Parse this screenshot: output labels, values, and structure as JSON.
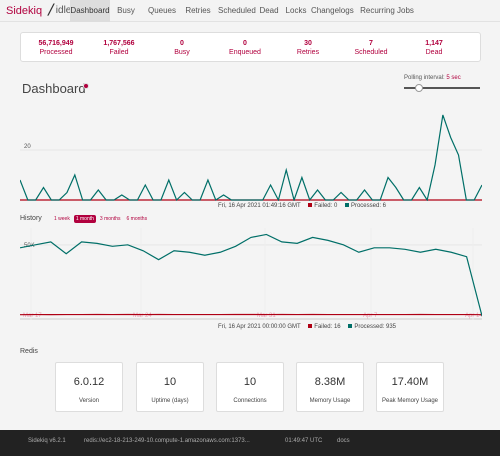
{
  "brand": "Sidekiq",
  "status": "idle",
  "nav": [
    "Dashboard",
    "Busy",
    "Queues",
    "Retries",
    "Scheduled",
    "Dead",
    "Locks",
    "Changelogs",
    "Recurring Jobs"
  ],
  "summary": [
    {
      "value": "56,716,949",
      "label": "Processed"
    },
    {
      "value": "1,767,566",
      "label": "Failed"
    },
    {
      "value": "0",
      "label": "Busy"
    },
    {
      "value": "0",
      "label": "Enqueued"
    },
    {
      "value": "30",
      "label": "Retries"
    },
    {
      "value": "7",
      "label": "Scheduled"
    },
    {
      "value": "1,147",
      "label": "Dead"
    }
  ],
  "dashboard_title": "Dashboard",
  "polling": {
    "label": "Polling interval:",
    "value": "5 sec"
  },
  "realtime_legend": {
    "time": "Fri, 16 Apr 2021 01:49:16 GMT",
    "failed": "Failed: 0",
    "processed": "Processed: 6"
  },
  "history": {
    "label": "History",
    "tabs": [
      "1 week",
      "1 month",
      "3 months",
      "6 months"
    ],
    "legend": {
      "time": "Fri, 16 Apr 2021 00:00:00 GMT",
      "failed": "Failed: 16",
      "processed": "Processed: 935"
    }
  },
  "redis": {
    "title": "Redis",
    "boxes": [
      {
        "value": "6.0.12",
        "label": "Version"
      },
      {
        "value": "10",
        "label": "Uptime (days)"
      },
      {
        "value": "10",
        "label": "Connections"
      },
      {
        "value": "8.38M",
        "label": "Memory Usage"
      },
      {
        "value": "17.40M",
        "label": "Peak Memory Usage"
      }
    ]
  },
  "footer": {
    "version": "Sidekiq v6.2.1",
    "redis_url": "redis://ec2-18-213-249-10.compute-1.amazonaws.com:1373...",
    "time": "01:49:47 UTC",
    "docs": "docs"
  },
  "colors": {
    "accent": "#b1003e",
    "processed": "#006f68",
    "failed": "#af0014"
  },
  "chart_data": [
    {
      "type": "line",
      "ylabel_ticks": [
        "20"
      ],
      "series": [
        {
          "name": "Failed",
          "values": [
            0,
            0,
            0,
            0,
            0,
            0,
            0,
            0,
            0,
            0,
            0,
            0,
            0,
            0,
            0,
            0,
            0,
            0,
            0,
            0,
            0,
            0,
            0,
            0,
            0,
            0,
            0,
            0,
            0,
            0,
            0,
            0,
            0,
            0,
            0,
            0,
            0,
            0,
            0,
            0,
            0,
            0,
            0,
            0,
            0,
            0,
            0,
            0,
            0,
            0,
            0,
            0,
            0,
            0,
            0,
            0,
            0,
            0,
            0,
            0
          ]
        },
        {
          "name": "Processed",
          "values": [
            8,
            0,
            0,
            5,
            0,
            0,
            3,
            10,
            0,
            0,
            4,
            0,
            0,
            2,
            0,
            0,
            6,
            0,
            0,
            8,
            0,
            3,
            0,
            0,
            8,
            0,
            2,
            0,
            0,
            0,
            0,
            0,
            6,
            0,
            12,
            0,
            9,
            0,
            4,
            0,
            0,
            3,
            0,
            0,
            4,
            0,
            0,
            9,
            5,
            0,
            0,
            5,
            0,
            14,
            34,
            25,
            18,
            0,
            0,
            6
          ]
        }
      ]
    },
    {
      "type": "line",
      "x_ticks": [
        "Mar 17",
        "Mar 24",
        "Mar 31",
        "Apr 7",
        "Apr 14"
      ],
      "ylabel_ticks": [
        "50K"
      ],
      "series": [
        {
          "name": "Failed",
          "values": [
            200,
            300,
            250,
            300,
            280,
            350,
            300,
            320,
            300,
            340,
            310,
            300,
            280,
            300,
            350,
            330,
            300,
            320,
            300,
            320,
            280,
            300,
            310,
            300,
            290,
            300,
            320,
            300,
            300,
            310,
            200
          ]
        },
        {
          "name": "Processed",
          "values": [
            48000,
            50000,
            52000,
            44000,
            52000,
            51000,
            49000,
            50000,
            46000,
            40000,
            46000,
            45000,
            43000,
            45000,
            49000,
            55000,
            57000,
            52000,
            51000,
            55000,
            53000,
            50000,
            45000,
            48000,
            48000,
            47000,
            45000,
            47000,
            45000,
            42000,
            2000
          ]
        }
      ]
    }
  ]
}
